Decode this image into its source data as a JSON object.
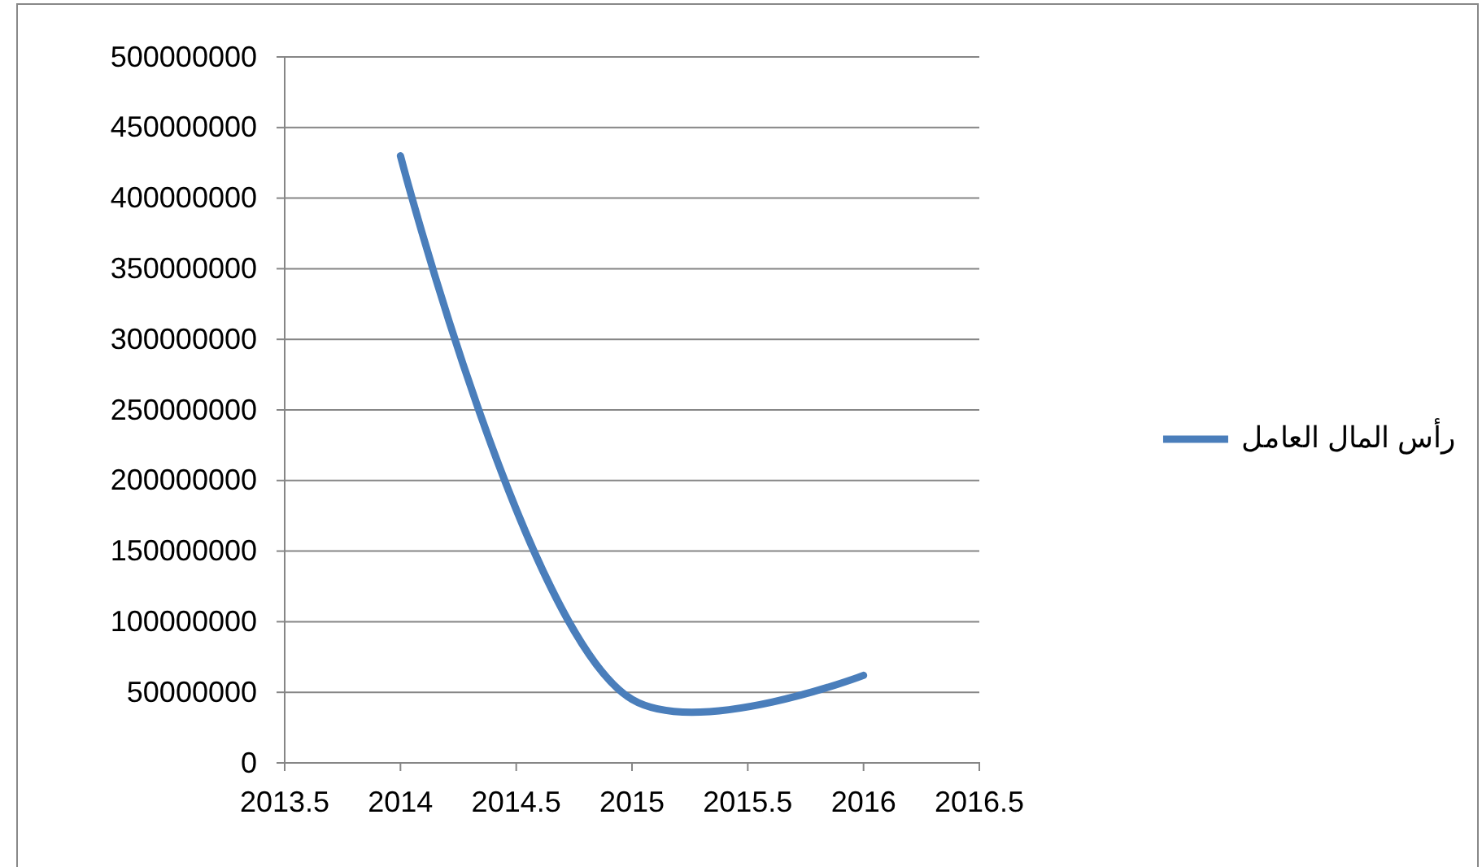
{
  "chart_data": {
    "type": "line",
    "x": [
      2014,
      2015,
      2016
    ],
    "series": [
      {
        "name": "رأس المال العامل",
        "color": "#4a7ebb",
        "values": [
          430000000,
          45000000,
          62000000
        ]
      }
    ],
    "xlim": [
      2013.5,
      2016.5
    ],
    "xticks": [
      2013.5,
      2014,
      2014.5,
      2015,
      2015.5,
      2016,
      2016.5
    ],
    "ylim": [
      0,
      500000000
    ],
    "yticks": [
      0,
      50000000,
      100000000,
      150000000,
      200000000,
      250000000,
      300000000,
      350000000,
      400000000,
      450000000,
      500000000
    ],
    "grid": "y",
    "legend": "right",
    "marker": "none",
    "line_style": "solid"
  }
}
